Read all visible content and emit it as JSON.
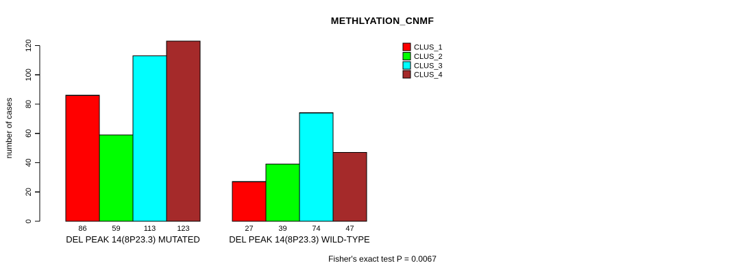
{
  "chart_data": {
    "type": "bar",
    "title": "METHLYATION_CNMF",
    "ylabel": "number of cases",
    "xlabel": "",
    "ylim": [
      0,
      120
    ],
    "yticks": [
      0,
      20,
      40,
      60,
      80,
      100,
      120
    ],
    "grid": false,
    "legend_position": "top-right",
    "categories": [
      "DEL PEAK 14(8P23.3) MUTATED",
      "DEL PEAK 14(8P23.3) WILD-TYPE"
    ],
    "series": [
      {
        "name": "CLUS_1",
        "color": "#ff0000",
        "values": [
          86,
          27
        ]
      },
      {
        "name": "CLUS_2",
        "color": "#00ff00",
        "values": [
          59,
          39
        ]
      },
      {
        "name": "CLUS_3",
        "color": "#00ffff",
        "values": [
          113,
          74
        ]
      },
      {
        "name": "CLUS_4",
        "color": "#a52a2a",
        "values": [
          123,
          47
        ]
      }
    ],
    "bar_value_labels": [
      [
        86,
        59,
        113,
        123
      ],
      [
        27,
        39,
        74,
        47
      ]
    ],
    "annotation": "Fisher's exact test P = 0.0067",
    "colors": {
      "axis": "#000000",
      "bar_border": "#000000",
      "background": "#ffffff"
    }
  }
}
